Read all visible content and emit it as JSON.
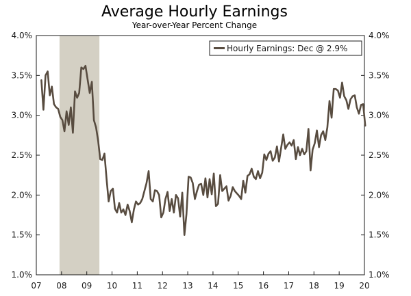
{
  "chart_data": {
    "type": "line",
    "title": "Average Hourly Earnings",
    "subtitle": "Year-over-Year Percent Change",
    "xlabel": "",
    "ylabel": "",
    "x_tick_labels": [
      "07",
      "08",
      "09",
      "10",
      "11",
      "12",
      "13",
      "14",
      "15",
      "16",
      "17",
      "18",
      "19",
      "20"
    ],
    "y_tick_labels": [
      "1.0%",
      "1.5%",
      "2.0%",
      "2.5%",
      "3.0%",
      "3.5%",
      "4.0%"
    ],
    "xlim": [
      2007.0,
      2020.0
    ],
    "ylim": [
      1.0,
      4.0
    ],
    "grid": false,
    "legend_position": "top-right",
    "recession_shading": {
      "start": 2007.92,
      "end": 2009.5,
      "color": "#d4d0c4"
    },
    "series": [
      {
        "name": "Hourly Earnings: Dec @ 2.9%",
        "color": "#584c40",
        "x_start": 2007.2,
        "x_step": 0.08333,
        "values": [
          3.44,
          3.07,
          3.5,
          3.55,
          3.25,
          3.36,
          3.14,
          3.1,
          3.08,
          2.98,
          2.94,
          2.8,
          3.05,
          2.88,
          3.1,
          2.78,
          3.3,
          3.22,
          3.28,
          3.6,
          3.58,
          3.62,
          3.45,
          3.28,
          3.42,
          2.94,
          2.85,
          2.68,
          2.45,
          2.44,
          2.52,
          2.2,
          1.92,
          2.05,
          2.08,
          1.83,
          1.78,
          1.9,
          1.78,
          1.82,
          1.75,
          1.88,
          1.8,
          1.66,
          1.82,
          1.92,
          1.88,
          1.9,
          1.95,
          2.05,
          2.15,
          2.3,
          1.95,
          1.92,
          2.06,
          2.05,
          2.0,
          1.72,
          1.78,
          1.95,
          2.04,
          1.8,
          1.95,
          1.78,
          2.0,
          1.96,
          1.73,
          2.03,
          1.5,
          1.76,
          2.23,
          2.22,
          2.15,
          1.95,
          2.05,
          2.13,
          2.14,
          2.0,
          2.21,
          1.97,
          2.2,
          2.01,
          2.27,
          1.86,
          1.89,
          2.25,
          2.05,
          2.08,
          2.11,
          1.93,
          1.99,
          2.1,
          2.05,
          2.02,
          1.99,
          1.95,
          2.18,
          2.03,
          2.24,
          2.26,
          2.33,
          2.23,
          2.2,
          2.3,
          2.21,
          2.28,
          2.51,
          2.44,
          2.52,
          2.55,
          2.43,
          2.47,
          2.61,
          2.42,
          2.59,
          2.76,
          2.58,
          2.63,
          2.66,
          2.62,
          2.69,
          2.45,
          2.6,
          2.5,
          2.58,
          2.51,
          2.55,
          2.83,
          2.31,
          2.57,
          2.65,
          2.81,
          2.6,
          2.75,
          2.8,
          2.69,
          2.85,
          3.18,
          2.97,
          3.33,
          3.33,
          3.31,
          3.22,
          3.41,
          3.24,
          3.19,
          3.08,
          3.2,
          3.24,
          3.25,
          3.1,
          3.02,
          3.13,
          3.14,
          2.87
        ]
      }
    ]
  }
}
